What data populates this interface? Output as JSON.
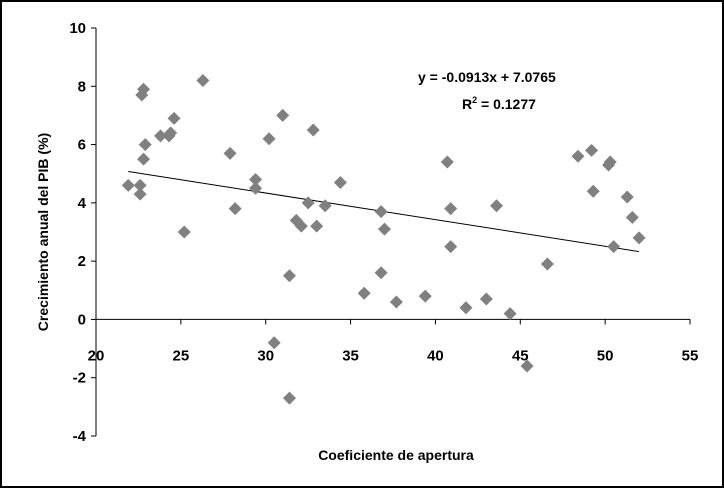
{
  "chart_data": {
    "type": "scatter",
    "title": "",
    "xlabel": "Coeficiente de apertura",
    "ylabel": "Crecimiento anual del PIB (%)",
    "xlim": [
      20,
      55
    ],
    "ylim": [
      -4,
      10
    ],
    "x_ticks": [
      20,
      25,
      30,
      35,
      40,
      45,
      50,
      55
    ],
    "y_ticks": [
      -4,
      -2,
      0,
      2,
      4,
      6,
      8,
      10
    ],
    "x_tick_labels": [
      "20",
      "25",
      "30",
      "35",
      "40",
      "45",
      "50",
      "55"
    ],
    "y_tick_labels": [
      "-4",
      "-2",
      "0",
      "2",
      "4",
      "6",
      "8",
      "10"
    ],
    "grid": false,
    "legend": "none",
    "marker": "diamond",
    "marker_color": "#808080",
    "series": [
      {
        "points": [
          [
            21.9,
            4.6
          ],
          [
            22.6,
            4.6
          ],
          [
            22.6,
            4.3
          ],
          [
            22.7,
            7.7
          ],
          [
            22.8,
            7.9
          ],
          [
            22.8,
            5.5
          ],
          [
            22.9,
            6.0
          ],
          [
            23.8,
            6.3
          ],
          [
            24.3,
            6.3
          ],
          [
            24.4,
            6.4
          ],
          [
            24.6,
            6.9
          ],
          [
            25.2,
            3.0
          ],
          [
            26.3,
            8.2
          ],
          [
            27.9,
            5.7
          ],
          [
            28.2,
            3.8
          ],
          [
            29.4,
            4.8
          ],
          [
            29.4,
            4.5
          ],
          [
            30.2,
            6.2
          ],
          [
            30.5,
            -0.8
          ],
          [
            31.0,
            7.0
          ],
          [
            31.4,
            1.5
          ],
          [
            31.4,
            -2.7
          ],
          [
            31.8,
            3.4
          ],
          [
            32.1,
            3.2
          ],
          [
            32.5,
            4.0
          ],
          [
            32.8,
            6.5
          ],
          [
            33.0,
            3.2
          ],
          [
            33.5,
            3.9
          ],
          [
            34.4,
            4.7
          ],
          [
            35.8,
            0.9
          ],
          [
            36.8,
            3.7
          ],
          [
            36.8,
            1.6
          ],
          [
            37.0,
            3.1
          ],
          [
            37.7,
            0.6
          ],
          [
            39.4,
            0.8
          ],
          [
            40.7,
            5.4
          ],
          [
            40.9,
            3.8
          ],
          [
            40.9,
            2.5
          ],
          [
            41.8,
            0.4
          ],
          [
            43.0,
            0.7
          ],
          [
            43.6,
            3.9
          ],
          [
            44.4,
            0.2
          ],
          [
            45.4,
            -1.6
          ],
          [
            46.6,
            1.9
          ],
          [
            48.4,
            5.6
          ],
          [
            49.2,
            5.8
          ],
          [
            49.3,
            4.4
          ],
          [
            50.2,
            5.3
          ],
          [
            50.3,
            5.4
          ],
          [
            50.5,
            2.5
          ],
          [
            51.3,
            4.2
          ],
          [
            51.6,
            3.5
          ],
          [
            52.0,
            2.8
          ]
        ]
      }
    ],
    "trendline": {
      "slope": -0.0913,
      "intercept": 7.0765,
      "x_range": [
        21.9,
        52.0
      ]
    },
    "annotations": {
      "equation": "y = -0.0913x + 7.0765",
      "r2_base": "R",
      "r2_exp": "2",
      "r2_value": " = 0.1277"
    }
  }
}
